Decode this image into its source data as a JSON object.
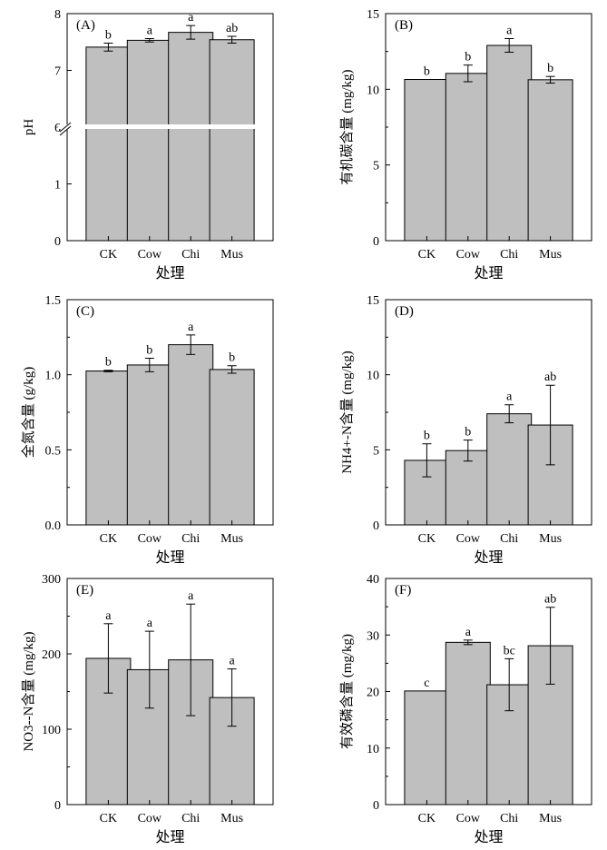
{
  "figure": {
    "background": "#ffffff",
    "bar_color": "#bfbfbf",
    "axis_color": "#000000"
  },
  "chart_data": [
    {
      "type": "bar",
      "panel_label": "(A)",
      "title": "",
      "xlabel": "处理",
      "ylabel": "pH",
      "categories": [
        "CK",
        "Cow",
        "Chi",
        "Mus"
      ],
      "values": [
        7.41,
        7.53,
        7.67,
        7.54
      ],
      "errors": [
        0.07,
        0.03,
        0.12,
        0.06
      ],
      "significance": [
        "b",
        "a",
        "a",
        "ab"
      ],
      "ylim": [
        0,
        8
      ],
      "axis_break": {
        "lower": [
          0,
          2
        ],
        "upper": [
          6,
          8
        ]
      },
      "yticks": [
        0,
        1,
        2,
        6,
        7,
        8
      ],
      "ytick_labels": [
        "0",
        "1",
        "",
        "6",
        "7",
        "8"
      ]
    },
    {
      "type": "bar",
      "panel_label": "(B)",
      "title": "",
      "xlabel": "处理",
      "ylabel": "有机碳含量 (mg/kg)",
      "categories": [
        "CK",
        "Cow",
        "Chi",
        "Mus"
      ],
      "values": [
        10.65,
        11.05,
        12.9,
        10.63
      ],
      "errors": [
        0.0,
        0.55,
        0.45,
        0.22
      ],
      "significance": [
        "b",
        "b",
        "a",
        "b"
      ],
      "ylim": [
        0,
        15
      ],
      "yticks": [
        0,
        5,
        10,
        15
      ],
      "ytick_labels": [
        "0",
        "5",
        "10",
        "15"
      ]
    },
    {
      "type": "bar",
      "panel_label": "(C)",
      "title": "",
      "xlabel": "处理",
      "ylabel": "全氮含量 (g/kg)",
      "categories": [
        "CK",
        "Cow",
        "Chi",
        "Mus"
      ],
      "values": [
        1.025,
        1.065,
        1.2,
        1.035
      ],
      "errors": [
        0.005,
        0.045,
        0.065,
        0.025
      ],
      "significance": [
        "b",
        "b",
        "a",
        "b"
      ],
      "ylim": [
        0,
        1.5
      ],
      "yticks": [
        0,
        0.5,
        1.0,
        1.5
      ],
      "ytick_labels": [
        "0.0",
        "0.5",
        "1.0",
        "1.5"
      ]
    },
    {
      "type": "bar",
      "panel_label": "(D)",
      "title": "",
      "xlabel": "处理",
      "ylabel": "NH4+-N含量 (mg/kg)",
      "categories": [
        "CK",
        "Cow",
        "Chi",
        "Mus"
      ],
      "values": [
        4.3,
        4.95,
        7.4,
        6.65
      ],
      "errors": [
        1.1,
        0.7,
        0.6,
        2.65
      ],
      "significance": [
        "b",
        "b",
        "a",
        "ab"
      ],
      "ylim": [
        0,
        15
      ],
      "yticks": [
        0,
        5,
        10,
        15
      ],
      "ytick_labels": [
        "0",
        "5",
        "10",
        "15"
      ]
    },
    {
      "type": "bar",
      "panel_label": "(E)",
      "title": "",
      "xlabel": "处理",
      "ylabel": "NO3--N含量 (mg/kg)",
      "categories": [
        "CK",
        "Cow",
        "Chi",
        "Mus"
      ],
      "values": [
        194,
        179,
        192,
        142
      ],
      "errors": [
        46,
        51,
        74,
        38
      ],
      "significance": [
        "a",
        "a",
        "a",
        "a"
      ],
      "ylim": [
        0,
        300
      ],
      "yticks": [
        0,
        100,
        200,
        300
      ],
      "ytick_labels": [
        "0",
        "100",
        "200",
        "300"
      ]
    },
    {
      "type": "bar",
      "panel_label": "(F)",
      "title": "",
      "xlabel": "处理",
      "ylabel": "有效磷含量 (mg/kg)",
      "categories": [
        "CK",
        "Cow",
        "Chi",
        "Mus"
      ],
      "values": [
        20.1,
        28.7,
        21.2,
        28.1
      ],
      "errors": [
        0.0,
        0.4,
        4.6,
        6.8
      ],
      "significance": [
        "c",
        "a",
        "bc",
        "ab"
      ],
      "ylim": [
        0,
        40
      ],
      "yticks": [
        0,
        10,
        20,
        30,
        40
      ],
      "ytick_labels": [
        "0",
        "10",
        "20",
        "30",
        "40"
      ]
    }
  ]
}
